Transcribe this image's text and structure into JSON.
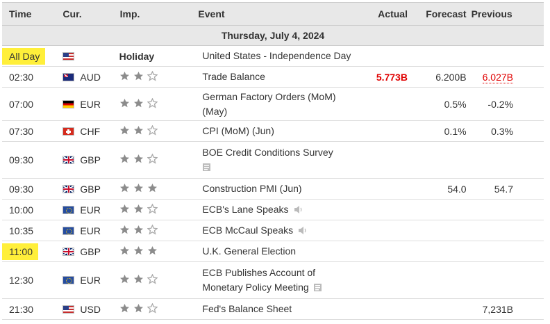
{
  "columns": {
    "time": "Time",
    "currency": "Cur.",
    "importance": "Imp.",
    "event": "Event",
    "actual": "Actual",
    "forecast": "Forecast",
    "previous": "Previous"
  },
  "date_header": "Thursday, July 4, 2024",
  "holiday_label": "Holiday",
  "rows": [
    {
      "time": "All Day",
      "currency": "",
      "flag": "us",
      "holiday": true,
      "event": "United States - Independence Day",
      "actual": "",
      "forecast": "",
      "previous": ""
    },
    {
      "time": "02:30",
      "currency": "AUD",
      "flag": "au",
      "stars": 2,
      "event": "Trade Balance",
      "actual": "5.773B",
      "forecast": "6.200B",
      "previous": "6.027B"
    },
    {
      "time": "07:00",
      "currency": "EUR",
      "flag": "de",
      "stars": 2,
      "event_line1": "German Factory Orders (MoM)",
      "event_line2": "(May)",
      "actual": "",
      "forecast": "0.5%",
      "previous": "-0.2%"
    },
    {
      "time": "07:30",
      "currency": "CHF",
      "flag": "ch",
      "stars": 2,
      "event": "CPI (MoM) (Jun)",
      "actual": "",
      "forecast": "0.1%",
      "previous": "0.3%"
    },
    {
      "time": "09:30",
      "currency": "GBP",
      "flag": "gb",
      "stars": 2,
      "event": "BOE Credit Conditions Survey",
      "actual": "",
      "forecast": "",
      "previous": ""
    },
    {
      "time": "09:30",
      "currency": "GBP",
      "flag": "gb",
      "stars": 3,
      "event": "Construction PMI (Jun)",
      "actual": "",
      "forecast": "54.0",
      "previous": "54.7"
    },
    {
      "time": "10:00",
      "currency": "EUR",
      "flag": "eu",
      "stars": 2,
      "event": "ECB's Lane Speaks",
      "actual": "",
      "forecast": "",
      "previous": ""
    },
    {
      "time": "10:35",
      "currency": "EUR",
      "flag": "eu",
      "stars": 2,
      "event": "ECB McCaul Speaks",
      "actual": "",
      "forecast": "",
      "previous": ""
    },
    {
      "time": "11:00",
      "currency": "GBP",
      "flag": "gb",
      "stars": 3,
      "event": "U.K. General Election",
      "actual": "",
      "forecast": "",
      "previous": ""
    },
    {
      "time": "12:30",
      "currency": "EUR",
      "flag": "eu",
      "stars": 2,
      "event_line1": "ECB Publishes Account of",
      "event_line2": "Monetary Policy Meeting",
      "actual": "",
      "forecast": "",
      "previous": ""
    },
    {
      "time": "21:30",
      "currency": "USD",
      "flag": "us",
      "stars": 2,
      "event": "Fed's Balance Sheet",
      "actual": "",
      "forecast": "",
      "previous": "7,231B"
    }
  ],
  "colors": {
    "highlight": "#ffef3a",
    "actual_worse": "#e00000",
    "header_bg": "#e8e8e8"
  },
  "icons": {
    "star_filled": "star-filled-icon",
    "star_empty": "star-empty-icon",
    "document": "document-icon",
    "speaker": "speaker-icon"
  }
}
